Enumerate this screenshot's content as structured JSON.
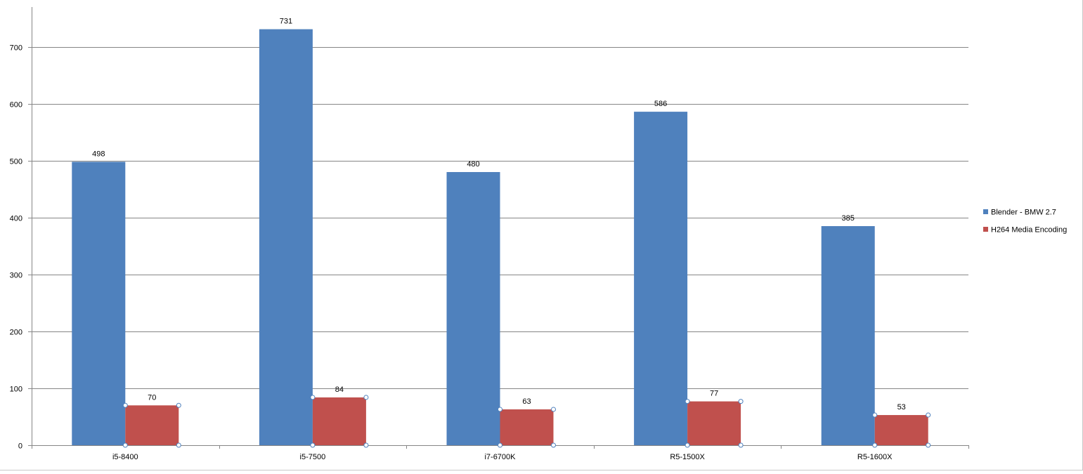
{
  "chart_data": {
    "type": "bar",
    "categories": [
      "i5-8400",
      "i5-7500",
      "i7-6700K",
      "R5-1500X",
      "R5-1600X"
    ],
    "series": [
      {
        "name": "Blender - BMW 2.7",
        "values": [
          498,
          731,
          480,
          586,
          385
        ],
        "color": "#4f81bd"
      },
      {
        "name": "H264 Media Encoding",
        "values": [
          70,
          84,
          63,
          77,
          53
        ],
        "color": "#c0504d"
      }
    ],
    "ylim": [
      0,
      770
    ],
    "yticks": [
      0,
      100,
      200,
      300,
      400,
      500,
      600,
      700
    ],
    "grid": true,
    "legend": "right",
    "data_labels": true,
    "title": "",
    "xlabel": "",
    "ylabel": ""
  },
  "colors": {
    "gridline": "#868686",
    "axis": "#868686",
    "selection_handle": "#4f81bd"
  }
}
